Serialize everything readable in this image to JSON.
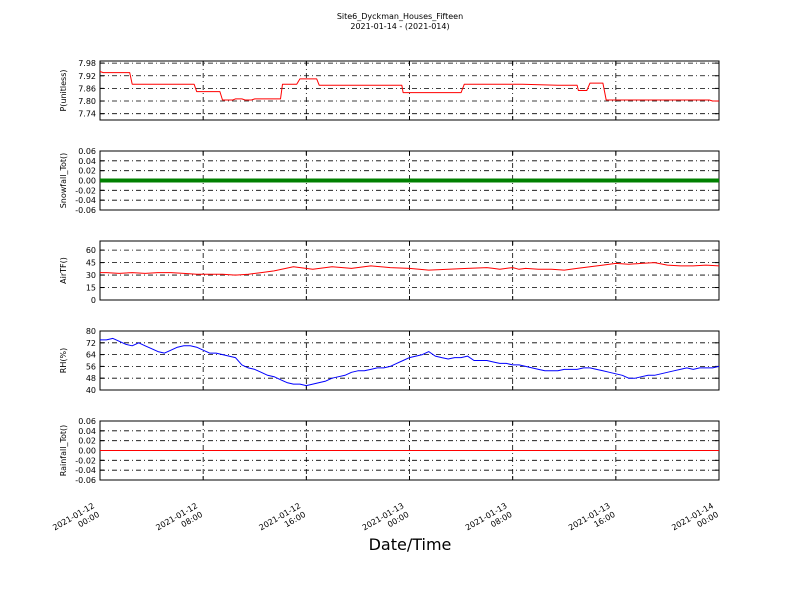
{
  "figure": {
    "title": "Site6_Dyckman_Houses_Fifteen",
    "subtitle": "2021-01-14 - (2021-014)",
    "xlabel": "Date/Time"
  },
  "chart_data": [
    {
      "type": "line",
      "ylabel": "P(unitless)",
      "ylim": [
        7.71,
        7.99
      ],
      "yticks": [
        "7.98",
        "7.92",
        "7.86",
        "7.80",
        "7.74"
      ],
      "ytick_values": [
        7.98,
        7.92,
        7.86,
        7.8,
        7.74
      ],
      "color": "#ff0000",
      "grid": true,
      "x_hours": [
        0,
        0.5,
        4.6,
        5,
        9.6,
        10,
        14.6,
        15,
        17.6,
        18,
        18.6,
        19,
        20.6,
        21,
        22,
        22.5,
        23.5,
        24,
        24.7,
        25,
        28,
        28.3,
        29.6,
        30,
        30.5,
        31,
        33.6,
        34,
        45,
        45.3,
        46,
        46.5,
        46.8,
        47,
        47.5,
        48,
        56,
        56.5,
        60,
        60.5,
        65,
        65.5,
        71,
        71.5,
        74,
        74.2,
        75.5,
        76,
        78,
        78.5,
        91,
        92,
        93,
        94,
        94.5,
        95,
        96
      ],
      "values": [
        7.94,
        7.935,
        7.935,
        7.88,
        7.88,
        7.88,
        7.88,
        7.845,
        7.845,
        7.845,
        7.845,
        7.805,
        7.805,
        7.81,
        7.81,
        7.805,
        7.805,
        7.81,
        7.81,
        7.81,
        7.81,
        7.88,
        7.88,
        7.88,
        7.88,
        7.905,
        7.905,
        7.875,
        7.875,
        7.875,
        7.875,
        7.875,
        7.875,
        7.84,
        7.84,
        7.84,
        7.84,
        7.88,
        7.88,
        7.88,
        7.88,
        7.88,
        7.875,
        7.875,
        7.875,
        7.85,
        7.85,
        7.885,
        7.885,
        7.805,
        7.805,
        7.805,
        7.805,
        7.805,
        7.805,
        7.8,
        7.8
      ]
    },
    {
      "type": "line",
      "ylabel": "Snowfall_Tot()",
      "ylim": [
        -0.06,
        0.06
      ],
      "yticks": [
        "0.06",
        "0.04",
        "0.02",
        "0.00",
        "-0.02",
        "-0.04",
        "-0.06"
      ],
      "ytick_values": [
        0.06,
        0.04,
        0.02,
        0,
        -0.02,
        -0.04,
        -0.06
      ],
      "color": "#008000",
      "grid": true,
      "x_hours": [
        0,
        96
      ],
      "values": [
        0,
        0
      ],
      "line_width": 4
    },
    {
      "type": "line",
      "ylabel": "AirTF()",
      "ylim": [
        0,
        71
      ],
      "yticks": [
        "60",
        "45",
        "30",
        "15",
        "0"
      ],
      "ytick_values": [
        60,
        45,
        30,
        15,
        0
      ],
      "color": "#ff0000",
      "grid": true,
      "x_hours": [
        0,
        1,
        3,
        5,
        7,
        9,
        11,
        13,
        15,
        17,
        19,
        21,
        23,
        25,
        27,
        30,
        33,
        36,
        39,
        42,
        45,
        48,
        51,
        54,
        57,
        60,
        61,
        62,
        63,
        64,
        65,
        66,
        68,
        70,
        72,
        74,
        76,
        78,
        80,
        82,
        84,
        86,
        88,
        90,
        92,
        94,
        96
      ],
      "values": [
        33,
        33,
        32,
        33,
        32,
        33,
        33,
        32,
        31,
        31,
        31,
        30,
        31,
        33,
        35,
        40,
        37,
        40,
        38,
        41,
        39,
        38,
        36,
        37,
        38,
        39,
        38,
        37,
        38,
        39,
        37,
        38,
        37,
        37,
        36,
        38,
        40,
        42,
        44,
        43,
        44,
        45,
        42,
        41,
        41,
        42,
        41
      ]
    },
    {
      "type": "line",
      "ylabel": "RH(%)",
      "ylim": [
        40,
        80
      ],
      "yticks": [
        "80",
        "72",
        "64",
        "56",
        "48",
        "40"
      ],
      "ytick_values": [
        80,
        72,
        64,
        56,
        48,
        40
      ],
      "color": "#0000ff",
      "grid": true,
      "x_hours": [
        0,
        1,
        2,
        3,
        4,
        5,
        6,
        7,
        8,
        9,
        10,
        11,
        12,
        13,
        14,
        15,
        16,
        17,
        18,
        19,
        20,
        21,
        22,
        23,
        24,
        25,
        26,
        27,
        28,
        29,
        30,
        31,
        32,
        33,
        34,
        35,
        36,
        37,
        38,
        39,
        40,
        41,
        42,
        43,
        44,
        45,
        46,
        47,
        48,
        49,
        50,
        51,
        52,
        53,
        54,
        55,
        56,
        57,
        58,
        59,
        60,
        61,
        62,
        63,
        64,
        65,
        66,
        67,
        68,
        69,
        70,
        71,
        72,
        73,
        74,
        75,
        76,
        77,
        78,
        79,
        80,
        81,
        82,
        83,
        84,
        85,
        86,
        87,
        88,
        89,
        90,
        91,
        92,
        93,
        94,
        95,
        96
      ],
      "values": [
        74,
        74,
        75,
        73,
        71,
        70,
        72,
        70,
        68,
        66,
        65,
        67,
        69,
        70,
        70,
        69,
        67,
        65,
        65,
        64,
        63,
        62,
        57,
        55,
        54,
        52,
        50,
        49,
        47,
        45,
        44,
        44,
        43,
        44,
        45,
        46,
        48,
        49,
        50,
        52,
        53,
        53,
        54,
        55,
        55,
        56,
        58,
        60,
        62,
        63,
        64,
        66,
        63,
        62,
        61,
        62,
        62,
        63,
        60,
        60,
        60,
        59,
        58,
        58,
        57,
        57,
        56,
        55,
        54,
        53,
        53,
        53,
        54,
        54,
        54,
        55,
        55,
        54,
        53,
        52,
        51,
        50,
        48,
        48,
        49,
        50,
        50,
        51,
        52,
        53,
        54,
        55,
        54,
        55,
        55,
        55,
        56
      ]
    },
    {
      "type": "line",
      "ylabel": "Rainfall_Tot()",
      "ylim": [
        -0.06,
        0.06
      ],
      "yticks": [
        "0.06",
        "0.04",
        "0.02",
        "0.00",
        "-0.02",
        "-0.04",
        "-0.06"
      ],
      "ytick_values": [
        0.06,
        0.04,
        0.02,
        0,
        -0.02,
        -0.04,
        -0.06
      ],
      "color": "#ff0000",
      "grid": true,
      "x_hours": [
        0,
        96
      ],
      "values": [
        0,
        0
      ]
    }
  ],
  "x_axis": {
    "range_hours": [
      0,
      96
    ],
    "ticks": [
      {
        "hours": 0,
        "line1": "2021-01-12",
        "line2": "00:00"
      },
      {
        "hours": 16,
        "line1": "2021-01-12",
        "line2": "08:00"
      },
      {
        "hours": 32,
        "line1": "2021-01-12",
        "line2": "16:00"
      },
      {
        "hours": 48,
        "line1": "2021-01-13",
        "line2": "00:00"
      },
      {
        "hours": 64,
        "line1": "2021-01-13",
        "line2": "08:00"
      },
      {
        "hours": 80,
        "line1": "2021-01-13",
        "line2": "16:00"
      },
      {
        "hours": 96,
        "line1": "2021-01-14",
        "line2": "00:00"
      }
    ]
  }
}
